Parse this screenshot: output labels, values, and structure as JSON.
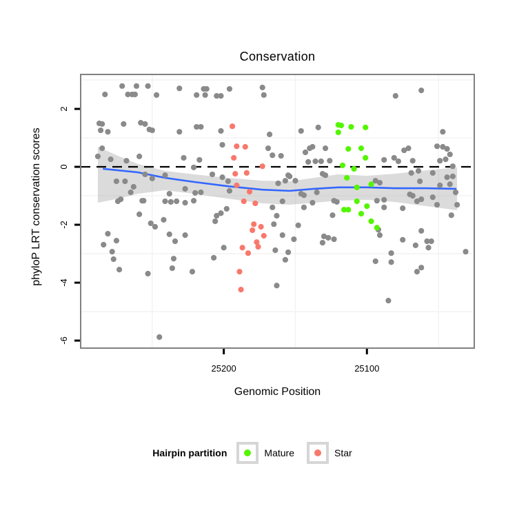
{
  "page": {
    "background": "#ffffff"
  },
  "chart_data": {
    "type": "scatter",
    "title": "Conservation",
    "xlabel": "Genomic Position",
    "ylabel": "phyloP LRT conservation scores",
    "x_axis": {
      "reversed": true,
      "domain_left": 25300,
      "domain_right": 25025,
      "ticks": [
        25200,
        25100
      ],
      "minor_gridlines": [
        25250,
        25150,
        25050
      ]
    },
    "y_axis": {
      "domain_max": 3.19,
      "domain_min": -6.26,
      "ticks": [
        2,
        0,
        -2,
        -4,
        -6
      ],
      "minor_gridlines": [
        3,
        1,
        -1,
        -3,
        -5
      ]
    },
    "style": {
      "panel_border_color": "#808080",
      "grid_minor_color": "#f1f1f1",
      "tick_color": "#000000",
      "point_radius": 4.1
    },
    "reference_line": {
      "y": 0,
      "style": "dashed",
      "color": "#000000"
    },
    "smooth": {
      "color": "#3366FF",
      "line": [
        [
          25284,
          -0.07
        ],
        [
          25260,
          -0.19
        ],
        [
          25241,
          -0.38
        ],
        [
          25221,
          -0.52
        ],
        [
          25197,
          -0.67
        ],
        [
          25173,
          -0.79
        ],
        [
          25154,
          -0.83
        ],
        [
          25137,
          -0.76
        ],
        [
          25120,
          -0.71
        ],
        [
          25100,
          -0.71
        ],
        [
          25081,
          -0.74
        ],
        [
          25058,
          -0.74
        ],
        [
          25038,
          -0.76
        ]
      ]
    },
    "ribbon": {
      "color": "#999999",
      "opacity": 0.35,
      "points": [
        [
          25288,
          0.69,
          -1.24
        ],
        [
          25274,
          0.38,
          -1.1
        ],
        [
          25260,
          0.1,
          -0.93
        ],
        [
          25241,
          -0.14,
          -0.81
        ],
        [
          25221,
          -0.26,
          -0.93
        ],
        [
          25197,
          -0.38,
          -1.1
        ],
        [
          25173,
          -0.48,
          -1.26
        ],
        [
          25154,
          -0.5,
          -1.31
        ],
        [
          25137,
          -0.38,
          -1.24
        ],
        [
          25120,
          -0.26,
          -1.17
        ],
        [
          25100,
          -0.31,
          -1.14
        ],
        [
          25081,
          -0.24,
          -1.21
        ],
        [
          25058,
          -0.12,
          -1.36
        ],
        [
          25037,
          -0.02,
          -1.5
        ]
      ]
    },
    "legend": {
      "title": "Hairpin partition",
      "entries": [
        {
          "label": "Mature",
          "color": "#54F500"
        },
        {
          "label": "Star",
          "color": "#F8796C"
        }
      ]
    },
    "series": [
      {
        "name": "Other",
        "color": "#8A8A8A",
        "points": [
          [
            25271,
            2.79
          ],
          [
            25261,
            2.79
          ],
          [
            25253,
            2.79
          ],
          [
            25231,
            2.71
          ],
          [
            25214,
            2.69
          ],
          [
            25212,
            2.69
          ],
          [
            25196,
            2.69
          ],
          [
            25173,
            2.74
          ],
          [
            25062,
            2.64
          ],
          [
            25283,
            2.5
          ],
          [
            25267,
            2.5
          ],
          [
            25264,
            2.5
          ],
          [
            25262,
            2.5
          ],
          [
            25247,
            2.48
          ],
          [
            25219,
            2.48
          ],
          [
            25213,
            2.48
          ],
          [
            25205,
            2.45
          ],
          [
            25202,
            2.45
          ],
          [
            25172,
            2.48
          ],
          [
            25080,
            2.45
          ],
          [
            25287,
            1.5
          ],
          [
            25285,
            1.48
          ],
          [
            25286,
            1.26
          ],
          [
            25281,
            1.21
          ],
          [
            25270,
            1.48
          ],
          [
            25258,
            1.52
          ],
          [
            25255,
            1.48
          ],
          [
            25252,
            1.29
          ],
          [
            25250,
            1.26
          ],
          [
            25231,
            1.21
          ],
          [
            25219,
            1.38
          ],
          [
            25216,
            1.38
          ],
          [
            25202,
            1.24
          ],
          [
            25168,
            1.12
          ],
          [
            25146,
            1.24
          ],
          [
            25134,
            1.36
          ],
          [
            25047,
            1.21
          ],
          [
            25201,
            0.76
          ],
          [
            25285,
            0.64
          ],
          [
            25288,
            0.36
          ],
          [
            25279,
            0.26
          ],
          [
            25268,
            0.21
          ],
          [
            25259,
            0.36
          ],
          [
            25228,
            0.31
          ],
          [
            25217,
            0.24
          ],
          [
            25221,
            -0.02
          ],
          [
            25241,
            -0.29
          ],
          [
            25255,
            -0.26
          ],
          [
            25250,
            -0.4
          ],
          [
            25275,
            -0.5
          ],
          [
            25269,
            -0.5
          ],
          [
            25263,
            -0.69
          ],
          [
            25265,
            -0.88
          ],
          [
            25272,
            -1.12
          ],
          [
            25257,
            -1.17
          ],
          [
            25238,
            -0.93
          ],
          [
            25227,
            -0.76
          ],
          [
            25220,
            -0.9
          ],
          [
            25216,
            -0.88
          ],
          [
            25208,
            -0.26
          ],
          [
            25201,
            -0.36
          ],
          [
            25197,
            -0.5
          ],
          [
            25196,
            -0.83
          ],
          [
            25169,
            0.64
          ],
          [
            25166,
            0.4
          ],
          [
            25160,
            0.38
          ],
          [
            25143,
            0.5
          ],
          [
            25140,
            0.64
          ],
          [
            25138,
            0.69
          ],
          [
            25129,
            0.64
          ],
          [
            25141,
            0.17
          ],
          [
            25136,
            0.19
          ],
          [
            25132,
            0.19
          ],
          [
            25126,
            0.21
          ],
          [
            25131,
            -0.24
          ],
          [
            25129,
            -0.29
          ],
          [
            25155,
            -0.29
          ],
          [
            25154,
            -0.33
          ],
          [
            25162,
            -0.57
          ],
          [
            25157,
            -0.48
          ],
          [
            25150,
            -0.48
          ],
          [
            25146,
            -0.93
          ],
          [
            25144,
            -0.98
          ],
          [
            25135,
            -0.88
          ],
          [
            25123,
            -1.17
          ],
          [
            25094,
            -0.48
          ],
          [
            25091,
            -0.55
          ],
          [
            25088,
            0.24
          ],
          [
            25081,
            0.31
          ],
          [
            25078,
            0.19
          ],
          [
            25074,
            0.57
          ],
          [
            25071,
            0.64
          ],
          [
            25068,
            0.21
          ],
          [
            25064,
            -0.14
          ],
          [
            25069,
            -0.21
          ],
          [
            25054,
            -0.21
          ],
          [
            25063,
            -0.5
          ],
          [
            25070,
            -0.95
          ],
          [
            25068,
            -1.0
          ],
          [
            25062,
            -1.12
          ],
          [
            25054,
            -1.05
          ],
          [
            25051,
            0.71
          ],
          [
            25047,
            0.69
          ],
          [
            25044,
            0.62
          ],
          [
            25049,
            0.21
          ],
          [
            25045,
            0.26
          ],
          [
            25042,
            0.43
          ],
          [
            25040,
            0.02
          ],
          [
            25044,
            -0.36
          ],
          [
            25040,
            -0.33
          ],
          [
            25042,
            -0.6
          ],
          [
            25049,
            -0.64
          ],
          [
            25038,
            -0.88
          ],
          [
            25051,
            -1.31
          ],
          [
            25037,
            -1.31
          ],
          [
            25274,
            -1.19
          ],
          [
            25256,
            -1.17
          ],
          [
            25241,
            -1.19
          ],
          [
            25237,
            -1.21
          ],
          [
            25233,
            -1.19
          ],
          [
            25227,
            -1.24
          ],
          [
            25221,
            -1.17
          ],
          [
            25205,
            -1.69
          ],
          [
            25202,
            -1.6
          ],
          [
            25198,
            -1.45
          ],
          [
            25206,
            -1.88
          ],
          [
            25259,
            -1.64
          ],
          [
            25242,
            -1.83
          ],
          [
            25251,
            -1.95
          ],
          [
            25248,
            -2.07
          ],
          [
            25238,
            -2.33
          ],
          [
            25227,
            -2.36
          ],
          [
            25234,
            -2.57
          ],
          [
            25281,
            -2.31
          ],
          [
            25275,
            -2.55
          ],
          [
            25284,
            -2.69
          ],
          [
            25278,
            -2.93
          ],
          [
            25277,
            -3.19
          ],
          [
            25200,
            -2.79
          ],
          [
            25207,
            -3.14
          ],
          [
            25235,
            -3.17
          ],
          [
            25166,
            -1.4
          ],
          [
            25164,
            -2.88
          ],
          [
            25163,
            -1.69
          ],
          [
            25165,
            -1.98
          ],
          [
            25159,
            -1.19
          ],
          [
            25144,
            -1.4
          ],
          [
            25138,
            -1.24
          ],
          [
            25121,
            -1.21
          ],
          [
            25093,
            -1.17
          ],
          [
            25088,
            -1.14
          ],
          [
            25088,
            -1.4
          ],
          [
            25124,
            -1.67
          ],
          [
            25148,
            -2.02
          ],
          [
            25159,
            -2.36
          ],
          [
            25151,
            -2.5
          ],
          [
            25155,
            -2.95
          ],
          [
            25157,
            -3.21
          ],
          [
            25131,
            -2.62
          ],
          [
            25130,
            -2.4
          ],
          [
            25127,
            -2.45
          ],
          [
            25123,
            -2.5
          ],
          [
            25094,
            -3.26
          ],
          [
            25092,
            -2.17
          ],
          [
            25091,
            -2.36
          ],
          [
            25075,
            -1.43
          ],
          [
            25075,
            -2.52
          ],
          [
            25066,
            -2.71
          ],
          [
            25062,
            -2.21
          ],
          [
            25058,
            -2.57
          ],
          [
            25055,
            -2.57
          ],
          [
            25057,
            -2.79
          ],
          [
            25041,
            -1.67
          ],
          [
            25065,
            -1.19
          ],
          [
            25083,
            -2.98
          ],
          [
            25083,
            -3.29
          ],
          [
            25031,
            -2.93
          ],
          [
            25273,
            -3.55
          ],
          [
            25253,
            -3.69
          ],
          [
            25236,
            -3.5
          ],
          [
            25222,
            -3.62
          ],
          [
            25163,
            -4.1
          ],
          [
            25245,
            -5.88
          ],
          [
            25085,
            -4.62
          ],
          [
            25065,
            -3.62
          ],
          [
            25062,
            -3.48
          ]
        ]
      },
      {
        "name": "Mature",
        "color": "#54F500",
        "points": [
          [
            25120,
            1.45
          ],
          [
            25118,
            1.43
          ],
          [
            25111,
            1.38
          ],
          [
            25101,
            1.36
          ],
          [
            25120,
            1.19
          ],
          [
            25113,
            0.62
          ],
          [
            25104,
            0.64
          ],
          [
            25101,
            0.31
          ],
          [
            25117,
            0.05
          ],
          [
            25109,
            -0.07
          ],
          [
            25114,
            -0.38
          ],
          [
            25107,
            -0.71
          ],
          [
            25097,
            -0.6
          ],
          [
            25107,
            -1.19
          ],
          [
            25100,
            -1.36
          ],
          [
            25116,
            -1.48
          ],
          [
            25113,
            -1.48
          ],
          [
            25104,
            -1.62
          ],
          [
            25097,
            -1.88
          ],
          [
            25093,
            -2.1
          ]
        ]
      },
      {
        "name": "Star",
        "color": "#F8796C",
        "points": [
          [
            25194,
            1.4
          ],
          [
            25191,
            0.71
          ],
          [
            25185,
            0.69
          ],
          [
            25193,
            0.31
          ],
          [
            25173,
            0.02
          ],
          [
            25192,
            -0.24
          ],
          [
            25184,
            -0.21
          ],
          [
            25191,
            -0.64
          ],
          [
            25182,
            -0.86
          ],
          [
            25186,
            -1.19
          ],
          [
            25178,
            -1.26
          ],
          [
            25179,
            -1.98
          ],
          [
            25174,
            -2.07
          ],
          [
            25180,
            -2.19
          ],
          [
            25172,
            -2.38
          ],
          [
            25177,
            -2.6
          ],
          [
            25176,
            -2.76
          ],
          [
            25187,
            -2.79
          ],
          [
            25183,
            -2.98
          ],
          [
            25189,
            -3.62
          ],
          [
            25188,
            -4.24
          ]
        ]
      }
    ]
  }
}
